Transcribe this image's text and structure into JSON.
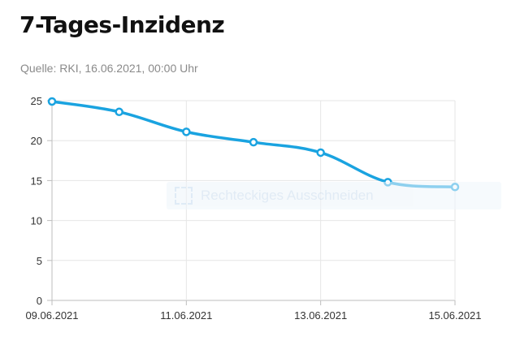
{
  "header": {
    "title": "7-Tages-Inzidenz",
    "source": "Quelle: RKI, 16.06.2021, 00:00 Uhr"
  },
  "overlay": {
    "icon": "rectangular-snip-icon",
    "label": "Rechteckiges Ausschneiden"
  },
  "colors": {
    "line": "#1aa3e0",
    "grid": "#e6e6e6",
    "axis": "#bdbdbd"
  },
  "chart_data": {
    "type": "line",
    "title": "7-Tages-Inzidenz",
    "xlabel": "",
    "ylabel": "",
    "x": [
      "09.06.2021",
      "10.06.2021",
      "11.06.2021",
      "12.06.2021",
      "13.06.2021",
      "14.06.2021",
      "15.06.2021"
    ],
    "x_tick_labels": [
      "09.06.2021",
      "11.06.2021",
      "13.06.2021",
      "15.06.2021"
    ],
    "series": [
      {
        "values": [
          24.9,
          23.6,
          21.1,
          19.8,
          18.5,
          14.8,
          14.2
        ]
      }
    ],
    "ylim": [
      0,
      25
    ],
    "y_ticks": [
      0,
      5,
      10,
      15,
      20,
      25
    ],
    "grid": true,
    "legend": "none"
  }
}
